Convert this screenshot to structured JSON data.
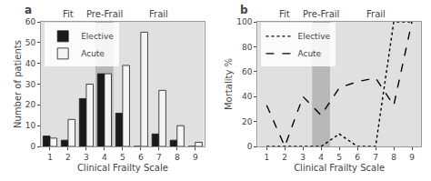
{
  "chart_data": [
    {
      "type": "bar",
      "title": "a",
      "x": [
        1,
        2,
        3,
        4,
        5,
        6,
        7,
        8,
        9
      ],
      "series": [
        {
          "name": "Elective",
          "color": "#1a1a1a",
          "values": [
            5,
            3,
            23,
            35,
            16,
            0,
            6,
            3,
            0
          ]
        },
        {
          "name": "Acute",
          "color": "#f5f5f5",
          "values": [
            4,
            13,
            30,
            35,
            39,
            55,
            27,
            10,
            2
          ]
        }
      ],
      "xlabel": "Clinical Frailty Scale",
      "ylabel": "Number of patients",
      "xlim": [
        0.5,
        9.5
      ],
      "xticks": [
        1,
        2,
        3,
        4,
        5,
        6,
        7,
        8,
        9
      ],
      "ylim": [
        0,
        60
      ],
      "yticks": [
        0,
        10,
        20,
        30,
        40,
        50,
        60
      ],
      "grid": false,
      "legend": "upper left",
      "regions": [
        {
          "name": "Fit",
          "range": [
            0.5,
            3.5
          ],
          "color": "#e0e0e0"
        },
        {
          "name": "Pre-Frail",
          "range": [
            3.5,
            4.5
          ],
          "color": "#b8b8b8"
        },
        {
          "name": "Frail",
          "range": [
            4.5,
            9.5
          ],
          "color": "#e0e0e0"
        }
      ]
    },
    {
      "type": "line",
      "title": "b",
      "x": [
        1,
        2,
        3,
        4,
        5,
        6,
        7,
        8,
        9
      ],
      "series": [
        {
          "name": "Elective",
          "color": "#000000",
          "line_style": "dotted",
          "values": [
            0,
            0,
            0,
            0,
            10,
            0,
            0,
            100,
            100
          ]
        },
        {
          "name": "Acute",
          "color": "#000000",
          "line_style": "dashed",
          "values": [
            33,
            0,
            40,
            25,
            47,
            52,
            55,
            33,
            100
          ]
        }
      ],
      "xlabel": "Clinical Frailty Scale",
      "ylabel": "Mortality %",
      "xlim": [
        0.5,
        9.5
      ],
      "xticks": [
        1,
        2,
        3,
        4,
        5,
        6,
        7,
        8,
        9
      ],
      "ylim": [
        0,
        100
      ],
      "yticks": [
        0,
        20,
        40,
        60,
        80,
        100
      ],
      "grid": false,
      "legend": "upper left",
      "regions": [
        {
          "name": "Fit",
          "range": [
            0.5,
            3.5
          ],
          "color": "#e0e0e0"
        },
        {
          "name": "Pre-Frail",
          "range": [
            3.5,
            4.5
          ],
          "color": "#b8b8b8"
        },
        {
          "name": "Frail",
          "range": [
            4.5,
            9.5
          ],
          "color": "#e0e0e0"
        }
      ]
    }
  ]
}
